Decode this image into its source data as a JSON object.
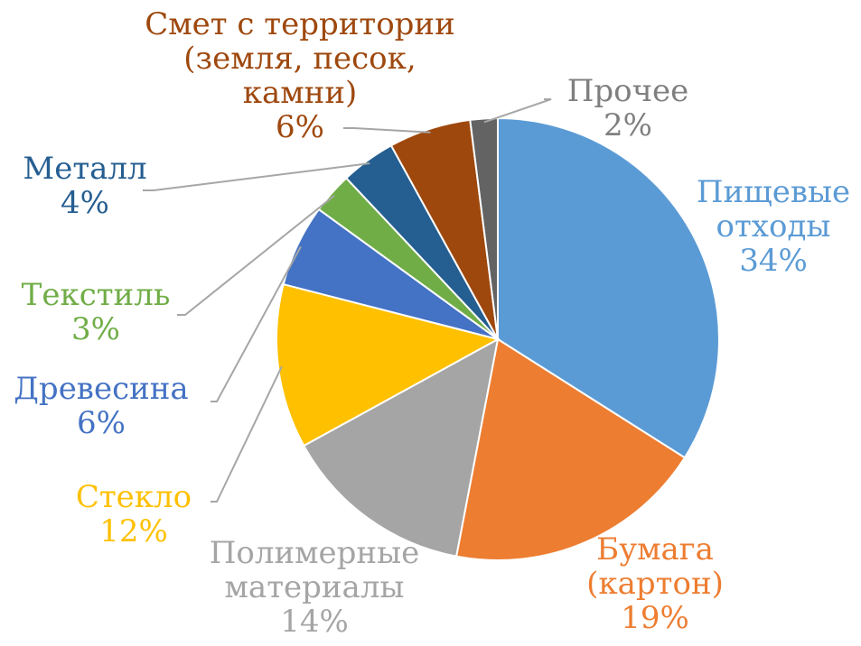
{
  "chart_data": {
    "type": "pie",
    "title": "",
    "slices": [
      {
        "label": "Пищевые отходы",
        "lines": [
          "Пищевые",
          "отходы"
        ],
        "value": 34,
        "pct": "34%",
        "color": "#5b9bd5"
      },
      {
        "label": "Бумага (картон)",
        "lines": [
          "Бумага",
          "(картон)"
        ],
        "value": 19,
        "pct": "19%",
        "color": "#ed7d31"
      },
      {
        "label": "Полимерные материалы",
        "lines": [
          "Полимерные",
          "материалы"
        ],
        "value": 14,
        "pct": "14%",
        "color": "#a5a5a5"
      },
      {
        "label": "Стекло",
        "lines": [
          "Стекло"
        ],
        "value": 12,
        "pct": "12%",
        "color": "#ffc000"
      },
      {
        "label": "Древесина",
        "lines": [
          "Древесина"
        ],
        "value": 6,
        "pct": "6%",
        "color": "#4472c4"
      },
      {
        "label": "Текстиль",
        "lines": [
          "Текстиль"
        ],
        "value": 3,
        "pct": "3%",
        "color": "#70ad47"
      },
      {
        "label": "Металл",
        "lines": [
          "Металл"
        ],
        "value": 4,
        "pct": "4%",
        "color": "#255e91"
      },
      {
        "label": "Смет с территории (земля, песок, камни)",
        "lines": [
          "Смет с территории",
          "(земля, песок,",
          "камни)"
        ],
        "value": 6,
        "pct": "6%",
        "color": "#9e480e"
      },
      {
        "label": "Прочее",
        "lines": [
          "Прочее"
        ],
        "value": 2,
        "pct": "2%",
        "color": "#636363"
      }
    ],
    "label_colors": [
      "#5b9bd5",
      "#ed7d31",
      "#a5a5a5",
      "#ffc000",
      "#4472c4",
      "#70ad47",
      "#255e91",
      "#9e480e",
      "#7f7f7f"
    ],
    "start_angle": "12 o'clock",
    "direction": "clockwise",
    "legend": "none"
  }
}
